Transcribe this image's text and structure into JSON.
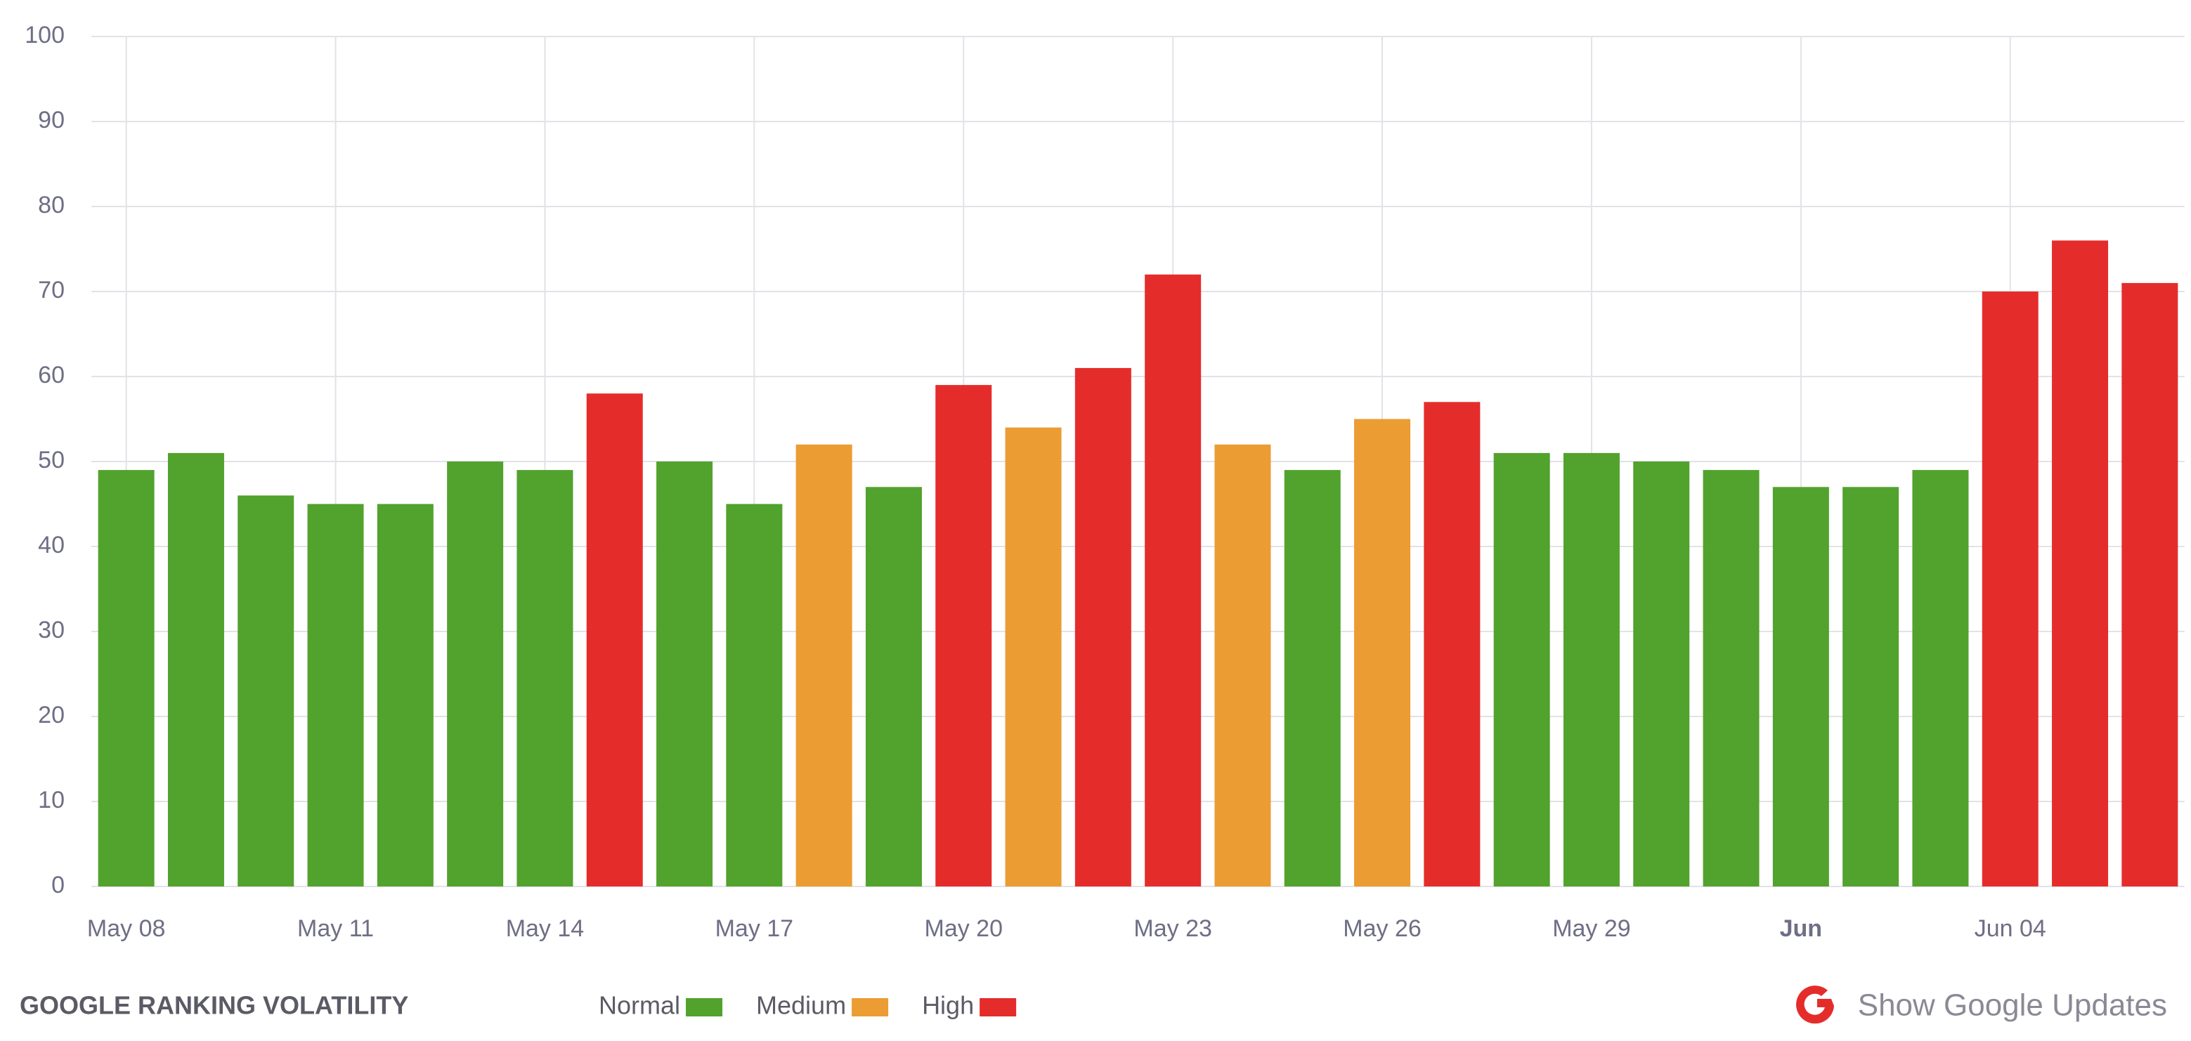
{
  "chart_data": {
    "type": "bar",
    "title": "GOOGLE RANKING VOLATILITY",
    "categories": [
      "May 08",
      null,
      null,
      "May 11",
      null,
      null,
      "May 14",
      null,
      null,
      "May 17",
      null,
      null,
      "May 20",
      null,
      null,
      "May 23",
      null,
      null,
      "May 26",
      null,
      null,
      "May 29",
      null,
      null,
      "Jun",
      null,
      null,
      "Jun 04",
      null,
      null
    ],
    "values": [
      49,
      51,
      46,
      45,
      45,
      50,
      49,
      58,
      50,
      45,
      52,
      47,
      59,
      54,
      61,
      72,
      52,
      49,
      55,
      57,
      51,
      51,
      50,
      49,
      47,
      47,
      49,
      70,
      76,
      71
    ],
    "colors": [
      "#52a22e",
      "#52a22e",
      "#52a22e",
      "#52a22e",
      "#52a22e",
      "#52a22e",
      "#52a22e",
      "#e42d2b",
      "#52a22e",
      "#52a22e",
      "#eb9c33",
      "#52a22e",
      "#e42d2b",
      "#eb9c33",
      "#e42d2b",
      "#e42d2b",
      "#eb9c33",
      "#52a22e",
      "#eb9c33",
      "#e42d2b",
      "#52a22e",
      "#52a22e",
      "#52a22e",
      "#52a22e",
      "#52a22e",
      "#52a22e",
      "#52a22e",
      "#e42d2b",
      "#e42d2b",
      "#e42d2b"
    ],
    "legend": [
      {
        "name": "Normal",
        "color": "#52a22e"
      },
      {
        "name": "Medium",
        "color": "#eb9c33"
      },
      {
        "name": "High",
        "color": "#e42d2b"
      }
    ],
    "ylim": [
      0,
      100
    ],
    "yticks": [
      0,
      10,
      20,
      30,
      40,
      50,
      60,
      70,
      80,
      90,
      100
    ],
    "grid": true,
    "button": "Show Google Updates"
  }
}
